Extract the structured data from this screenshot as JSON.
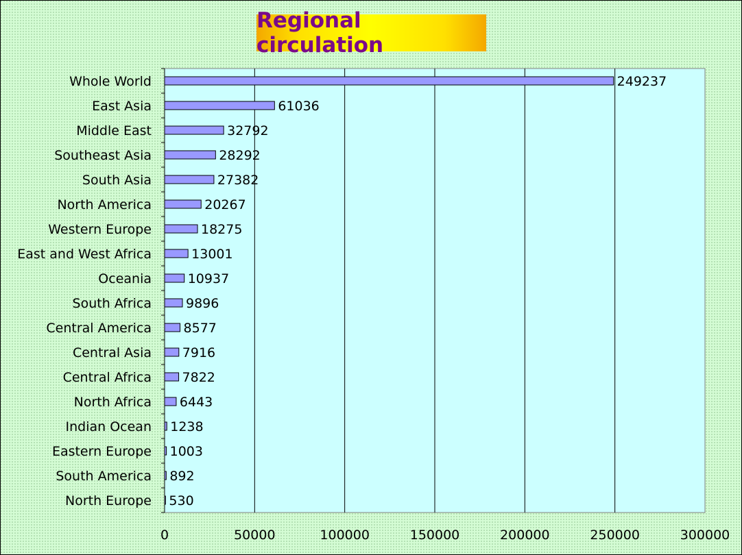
{
  "chart_data": {
    "type": "bar",
    "orientation": "horizontal",
    "title": "Regional circulation",
    "categories": [
      "Whole World",
      "East Asia",
      "Middle East",
      "Southeast Asia",
      "South Asia",
      "North America",
      "Western Europe",
      "East and West Africa",
      "Oceania",
      "South Africa",
      "Central America",
      "Central Asia",
      "Central Africa",
      "North Africa",
      "Indian Ocean",
      "Eastern Europe",
      "South America",
      "North Europe"
    ],
    "values": [
      249237,
      61036,
      32792,
      28292,
      27382,
      20267,
      18275,
      13001,
      10937,
      9896,
      8577,
      7916,
      7822,
      6443,
      1238,
      1003,
      892,
      530
    ],
    "xlim": [
      0,
      300000
    ],
    "xticks": [
      "0",
      "50000",
      "100000",
      "150000",
      "200000",
      "250000",
      "300000"
    ],
    "grid": "vertical",
    "data_labels": true,
    "colors": {
      "bar_fill": "#9999ff",
      "bar_stroke": "#000000",
      "plot_background": "#ccffff",
      "page_background": "#ccffcc",
      "title_color": "#800080",
      "title_background": "#ffff00"
    }
  }
}
